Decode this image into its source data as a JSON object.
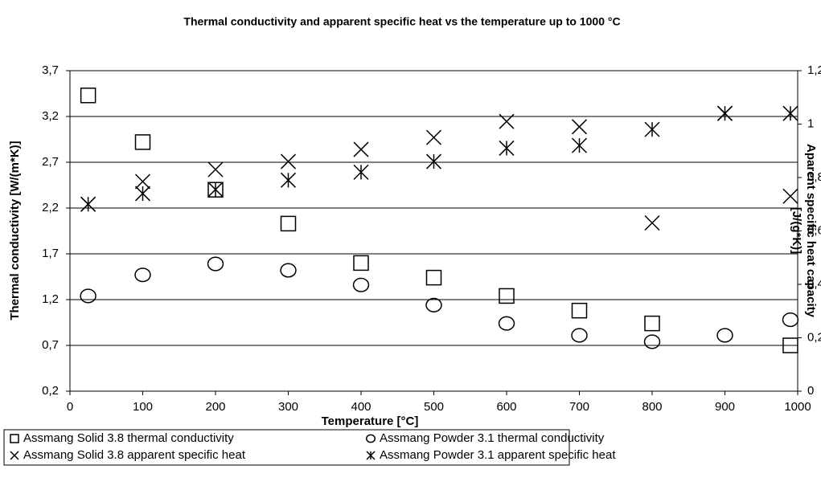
{
  "chart_data": {
    "type": "scatter",
    "title": "Thermal conductivity and apparent specific heat vs the temperature up to 1000 °C",
    "x_label": "Temperature [°C]",
    "y_label": "Thermal conductivity [W/(m*K)]",
    "y2_label": "Aparent specific heat capacity [J/(g*K)]",
    "x": [
      25,
      100,
      200,
      300,
      400,
      500,
      600,
      700,
      800,
      900,
      990
    ],
    "series": [
      {
        "name": "Assmang Solid 3.8 thermal conductivity",
        "marker": "square",
        "color": "#000000",
        "values": [
          3.43,
          2.92,
          2.4,
          2.03,
          1.6,
          1.44,
          1.24,
          1.08,
          0.94,
          null,
          0.7
        ]
      },
      {
        "name": "Assmang Powder 3.1 thermal conductivity",
        "marker": "circle",
        "color": "#000000",
        "values": [
          1.24,
          1.47,
          1.59,
          1.52,
          1.36,
          1.14,
          0.94,
          0.81,
          0.74,
          0.81,
          0.98
        ]
      },
      {
        "name": "Assmang Solid 3.8 apparent specific heat",
        "marker": "x",
        "color": "#000000",
        "axis": "y2",
        "values": [
          0.7,
          0.785,
          0.83,
          0.86,
          0.905,
          0.95,
          1.01,
          0.99,
          0.63,
          1.04,
          0.73
        ]
      },
      {
        "name": "Assmang Powder 3.1 apparent specific heat",
        "marker": "asterisk",
        "color": "#000000",
        "axis": "y2",
        "values": [
          0.7,
          0.74,
          0.755,
          0.79,
          0.82,
          0.86,
          0.91,
          0.92,
          0.98,
          1.04,
          1.04
        ]
      }
    ],
    "xlim": [
      0,
      1000
    ],
    "xticks": [
      0,
      100,
      200,
      300,
      400,
      500,
      600,
      700,
      800,
      900,
      1000
    ],
    "ylim": [
      0.2,
      3.7
    ],
    "yticks": [
      {
        "value": 0.2,
        "label": "0,2"
      },
      {
        "value": 0.7,
        "label": "0,7"
      },
      {
        "value": 1.2,
        "label": "1,2"
      },
      {
        "value": 1.7,
        "label": "1,7"
      },
      {
        "value": 2.2,
        "label": "2,2"
      },
      {
        "value": 2.7,
        "label": "2,7"
      },
      {
        "value": 3.2,
        "label": "3,2"
      },
      {
        "value": 3.7,
        "label": "3,7"
      }
    ],
    "y2lim": [
      0,
      1.2
    ],
    "y2ticks": [
      0,
      {
        "value": 0.2,
        "label": "0,2"
      },
      {
        "value": 0.4,
        "label": "0,4"
      },
      {
        "value": 0.6,
        "label": "0,6"
      },
      {
        "value": 0.8,
        "label": "0,8"
      },
      1,
      {
        "value": 1.2,
        "label": "1,2"
      }
    ],
    "grid": true,
    "legend": "bottom"
  }
}
